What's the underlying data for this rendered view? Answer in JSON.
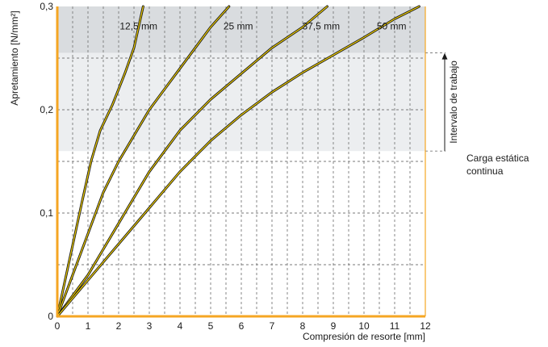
{
  "chart_data": {
    "type": "line",
    "title": "",
    "xlabel": "Compresión de resorte [mm]",
    "ylabel": "Apretamiento [N/mm²]",
    "xlim": [
      0,
      12
    ],
    "ylim": [
      0,
      0.3
    ],
    "x_ticks": [
      0,
      1,
      2,
      3,
      4,
      5,
      6,
      7,
      8,
      9,
      10,
      11,
      12
    ],
    "x_tick_labels": [
      "0",
      "1",
      "2",
      "3",
      "4",
      "5",
      "6",
      "7",
      "8",
      "9",
      "10",
      "11",
      "12"
    ],
    "y_ticks": [
      0,
      0.1,
      0.2,
      0.3
    ],
    "y_tick_labels": [
      "0",
      "0,1",
      "0,2",
      "0,3"
    ],
    "grid": true,
    "series": [
      {
        "name": "12,5 mm",
        "label_at": [
          2.65,
          0.281
        ],
        "points": [
          [
            0,
            0
          ],
          [
            0.4,
            0.055
          ],
          [
            0.8,
            0.11
          ],
          [
            1.1,
            0.15
          ],
          [
            1.4,
            0.18
          ],
          [
            1.8,
            0.205
          ],
          [
            2.2,
            0.235
          ],
          [
            2.5,
            0.26
          ],
          [
            2.8,
            0.3
          ]
        ]
      },
      {
        "name": "25 mm",
        "label_at": [
          5.9,
          0.281
        ],
        "points": [
          [
            0,
            0
          ],
          [
            0.5,
            0.04
          ],
          [
            1,
            0.08
          ],
          [
            1.5,
            0.12
          ],
          [
            2,
            0.15
          ],
          [
            2.5,
            0.175
          ],
          [
            3,
            0.2
          ],
          [
            3.5,
            0.22
          ],
          [
            4,
            0.24
          ],
          [
            4.5,
            0.26
          ],
          [
            5,
            0.28
          ],
          [
            5.6,
            0.3
          ]
        ]
      },
      {
        "name": "37,5 mm",
        "label_at": [
          8.6,
          0.281
        ],
        "points": [
          [
            0,
            0
          ],
          [
            1,
            0.04
          ],
          [
            2,
            0.09
          ],
          [
            3,
            0.14
          ],
          [
            4,
            0.18
          ],
          [
            5,
            0.21
          ],
          [
            6,
            0.235
          ],
          [
            7,
            0.26
          ],
          [
            8,
            0.28
          ],
          [
            8.8,
            0.3
          ]
        ]
      },
      {
        "name": "50 mm",
        "label_at": [
          10.9,
          0.281
        ],
        "points": [
          [
            0,
            0
          ],
          [
            1,
            0.035
          ],
          [
            2,
            0.07
          ],
          [
            3,
            0.105
          ],
          [
            4,
            0.14
          ],
          [
            4.5,
            0.155
          ],
          [
            5,
            0.17
          ],
          [
            6,
            0.195
          ],
          [
            7,
            0.217
          ],
          [
            8,
            0.236
          ],
          [
            9,
            0.253
          ],
          [
            10,
            0.27
          ],
          [
            11,
            0.288
          ],
          [
            11.8,
            0.3
          ]
        ]
      }
    ],
    "bands": [
      {
        "from": 0.255,
        "to": 0.3,
        "color": "#d9dcdf"
      },
      {
        "from": 0.16,
        "to": 0.255,
        "color": "#eceef0"
      }
    ],
    "annotations": {
      "working_range": {
        "text": "Intervalo de trabajo",
        "from": 0.16,
        "to": 0.255
      },
      "static_load": {
        "lines": [
          "Carga estática",
          "continua"
        ],
        "y": 0.16
      }
    }
  },
  "colors": {
    "axis": "#f5a623",
    "curve": "#f2d000",
    "curve_outline": "#1a1a1a",
    "grid": "#7a7a7a",
    "text": "#1a1a1a"
  }
}
